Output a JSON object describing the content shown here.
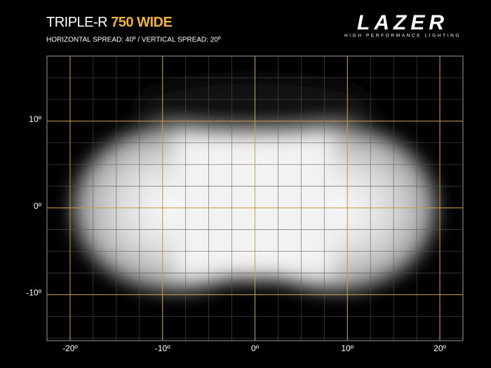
{
  "header": {
    "title": "TRIPLE-R",
    "title_highlight": "750 WIDE",
    "subtitle": "HORIZONTAL SPREAD: 40º  /  VERTICAL SPREAD:  20º"
  },
  "logo": {
    "brand": "LAZER",
    "tagline": "HIGH PERFORMANCE LIGHTING"
  },
  "chart_data": {
    "type": "beam",
    "xlim": [
      -22.5,
      22.5
    ],
    "ylim": [
      -15.3,
      17.5
    ],
    "xticks": [
      {
        "value": -20,
        "label": "-20º"
      },
      {
        "value": -10,
        "label": "-10º"
      },
      {
        "value": 0,
        "label": "0º"
      },
      {
        "value": 10,
        "label": "10º"
      },
      {
        "value": 20,
        "label": "20º"
      }
    ],
    "yticks": [
      {
        "value": 10,
        "label": "10º"
      },
      {
        "value": 0,
        "label": "0º"
      },
      {
        "value": -10,
        "label": "-10º"
      }
    ],
    "grid": true,
    "grid_color": "#c9a24a",
    "minor_grid_step": 2.5
  }
}
